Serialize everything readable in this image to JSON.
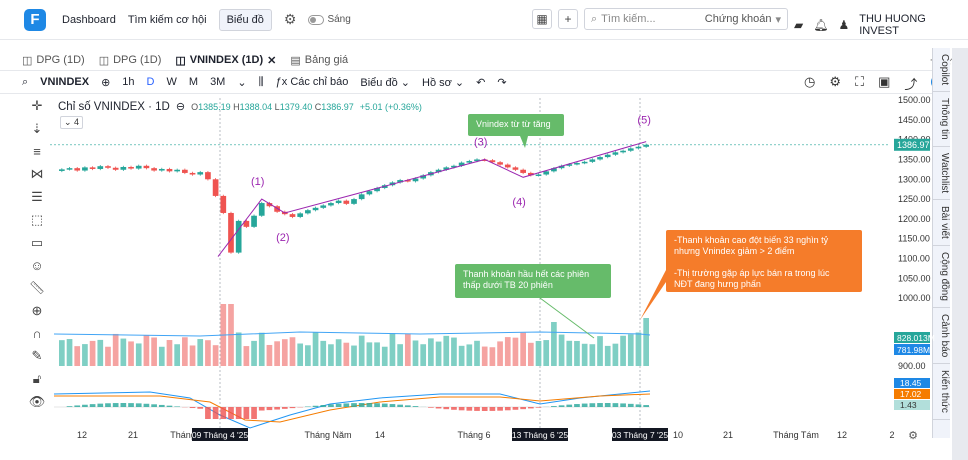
{
  "topbar": {
    "logo_letter": "F",
    "nav": [
      "Dashboard",
      "Tìm kiếm cơ hội"
    ],
    "chart_button": "Biểu đồ",
    "theme_toggle": "Sáng",
    "search_placeholder": "Tìm kiếm...",
    "search_category": "Chứng khoán",
    "user_name": "THU HUONG INVEST"
  },
  "tabs": [
    {
      "label": "DPG (1D)",
      "active": false
    },
    {
      "label": "DPG (1D)",
      "active": false
    },
    {
      "label": "VNINDEX (1D)",
      "active": true
    },
    {
      "label": "Bảng giá",
      "active": false
    }
  ],
  "toolbar": {
    "symbol": "VNINDEX",
    "intervals": [
      "1h",
      "D",
      "W",
      "M",
      "3M"
    ],
    "alerts": "Các chỉ báo",
    "chart_type": "Biểu đồ",
    "profile": "Hồ sơ"
  },
  "sidetabs": [
    "Copilot",
    "Thông tin",
    "Watchlist",
    "Bài viết",
    "Cộng đồng",
    "Cảnh báo",
    "Kiến thức"
  ],
  "legend": {
    "title": "Chỉ số VNINDEX · 1D",
    "o": "1385.19",
    "h": "1388.04",
    "l": "1379.40",
    "c": "1386.97",
    "change": "+5.01 (+0.36%)",
    "sub": "4"
  },
  "chart_data": {
    "type": "candlestick",
    "price_axis": [
      "1500.00",
      "1450.00",
      "1400.00",
      "1350.00",
      "1300.00",
      "1250.00",
      "1200.00",
      "1150.00",
      "1100.00",
      "1050.00",
      "1000.00",
      "900.00"
    ],
    "ylim": [
      950,
      1500
    ],
    "last_price_label": "1386.97",
    "volume_labels": [
      "828.013M",
      "781.98M"
    ],
    "macd_labels": [
      "18.45",
      "17.02",
      "1.43"
    ],
    "x_ticks": [
      "12",
      "21",
      "Tháng",
      "Tháng Năm",
      "14",
      "Tháng 6",
      "10",
      "21",
      "Tháng Tám",
      "12",
      "2"
    ],
    "x_highlight": [
      "09 Tháng 4 '25",
      "13 Tháng 6 '25",
      "03 Tháng 7 '25"
    ],
    "wave_labels": [
      "(1)",
      "(2)",
      "(3)",
      "(4)",
      "(5)"
    ],
    "wave_points": [
      {
        "label": "(1)",
        "value": 1250
      },
      {
        "label": "(2)",
        "value": 1215
      },
      {
        "label": "(3)",
        "value": 1350
      },
      {
        "label": "(4)",
        "value": 1305
      },
      {
        "label": "(5)",
        "value": 1395
      }
    ],
    "candles": [
      1325,
      1328,
      1322,
      1330,
      1326,
      1333,
      1329,
      1324,
      1331,
      1327,
      1334,
      1328,
      1322,
      1326,
      1320,
      1324,
      1316,
      1312,
      1318,
      1300,
      1258,
      1215,
      1115,
      1195,
      1180,
      1208,
      1240,
      1232,
      1218,
      1212,
      1205,
      1214,
      1222,
      1228,
      1234,
      1240,
      1246,
      1238,
      1250,
      1262,
      1270,
      1278,
      1285,
      1292,
      1298,
      1295,
      1302,
      1310,
      1318,
      1324,
      1330,
      1334,
      1342,
      1346,
      1350,
      1348,
      1343,
      1337,
      1330,
      1324,
      1316,
      1310,
      1312,
      1320,
      1328,
      1334,
      1338,
      1341,
      1344,
      1350,
      1356,
      1362,
      1368,
      1372,
      1378,
      1382,
      1387
    ]
  },
  "annotations": [
    {
      "text": "Vnindex từ từ tăng"
    },
    {
      "text": "Thanh khoản hầu hết các phiên thấp dưới TB 20 phiên"
    },
    {
      "text": "-Thanh khoản cao đột biến 33  nghìn tỷ nhưng Vnindex giảm > 2 điểm"
    },
    {
      "text": "-Thị trường gặp áp lực bán ra trong lúc NĐT đang hưng phấn"
    }
  ],
  "colors": {
    "up": "#26a69a",
    "down": "#ef5350",
    "accent": "#2962ff",
    "wave": "#9c27b0",
    "green_note": "#66bb6a",
    "orange_note": "#f57c2a"
  }
}
